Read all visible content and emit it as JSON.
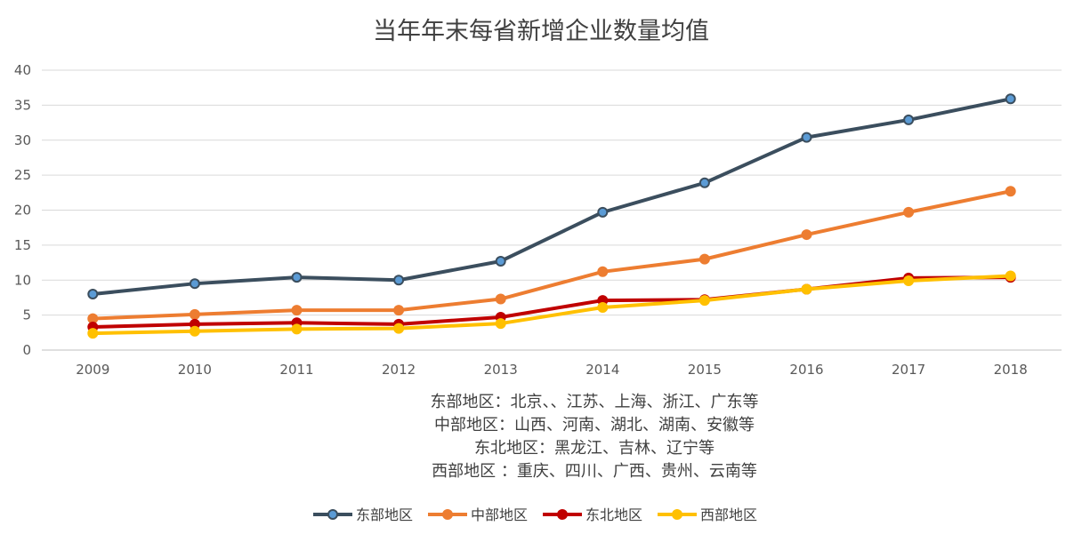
{
  "chart_data": {
    "type": "line",
    "title": "当年年末每省新增企业数量均值",
    "xlabel": "",
    "ylabel": "",
    "categories": [
      "2009",
      "2010",
      "2011",
      "2012",
      "2013",
      "2014",
      "2015",
      "2016",
      "2017",
      "2018"
    ],
    "y_ticks": [
      "0",
      "5",
      "10",
      "15",
      "20",
      "25",
      "30",
      "35",
      "40"
    ],
    "ylim": [
      0,
      40
    ],
    "grid": true,
    "legend_position": "bottom",
    "series": [
      {
        "name": "东部地区",
        "color": "#3b4e5e",
        "marker_color": "#5b9bd5",
        "values": [
          8.0,
          9.5,
          10.4,
          10.0,
          12.7,
          19.7,
          23.9,
          30.4,
          32.9,
          35.9
        ]
      },
      {
        "name": "中部地区",
        "color": "#ed7d31",
        "marker_color": "#ed7d31",
        "values": [
          4.5,
          5.1,
          5.7,
          5.7,
          7.3,
          11.2,
          13.0,
          16.5,
          19.7,
          22.7
        ]
      },
      {
        "name": "东北地区",
        "color": "#c00000",
        "marker_color": "#c00000",
        "values": [
          3.3,
          3.7,
          3.9,
          3.7,
          4.7,
          7.1,
          7.2,
          8.7,
          10.3,
          10.4
        ]
      },
      {
        "name": "西部地区",
        "color": "#ffc000",
        "marker_color": "#ffc000",
        "values": [
          2.4,
          2.7,
          3.0,
          3.1,
          3.8,
          6.1,
          7.1,
          8.7,
          9.9,
          10.6
        ]
      }
    ],
    "annotations": [
      "东部地区：北京、、江苏、上海、浙江、广东等",
      "中部地区：山西、河南、湖北、湖南、安徽等",
      "东北地区：黑龙江、吉林、辽宁等",
      "西部地区 ：重庆、四川、广西、贵州、云南等"
    ]
  }
}
